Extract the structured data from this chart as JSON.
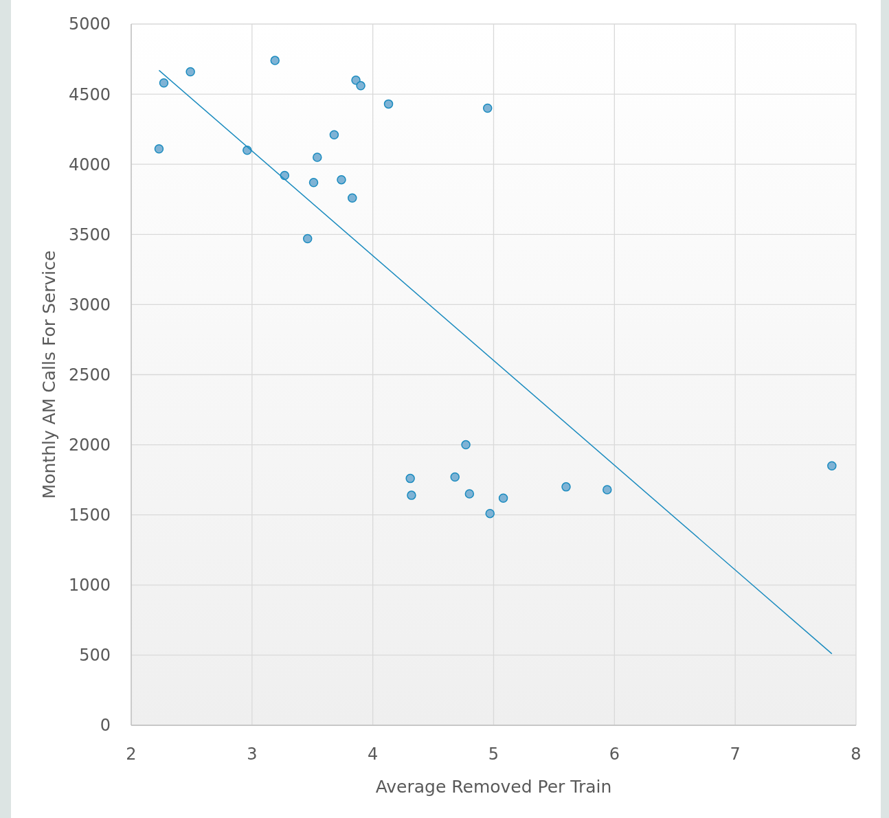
{
  "chart_data": {
    "type": "scatter",
    "xlabel": "Average Removed Per Train",
    "ylabel": "Monthly AM Calls For Service",
    "xlim": [
      2,
      8
    ],
    "xticks": [
      2,
      3,
      4,
      5,
      6,
      7,
      8
    ],
    "ylim": [
      0,
      5000
    ],
    "yticks": [
      0,
      500,
      1000,
      1500,
      2000,
      2500,
      3000,
      3500,
      4000,
      4500,
      5000
    ],
    "grid": true,
    "series": [
      {
        "color": "#7fb3d5",
        "marker": "circle",
        "x": [
          2.23,
          2.27,
          2.49,
          2.96,
          3.19,
          3.27,
          3.46,
          3.51,
          3.54,
          3.68,
          3.74,
          3.83,
          3.86,
          3.9,
          4.13,
          4.95,
          4.31,
          4.32,
          4.68,
          4.77,
          4.8,
          4.97,
          5.08,
          5.6,
          5.94,
          7.8
        ],
        "values": [
          4110,
          4580,
          4660,
          4100,
          4740,
          3920,
          3470,
          3870,
          4050,
          4210,
          3890,
          3760,
          4600,
          4560,
          4430,
          4400,
          1760,
          1640,
          1770,
          2000,
          1650,
          1510,
          1620,
          1700,
          1680,
          1850
        ]
      },
      {
        "type": "line",
        "marker": "none",
        "color": "#1a8bbf",
        "x": [
          2.23,
          7.8
        ],
        "values": [
          4670,
          510
        ]
      }
    ]
  }
}
